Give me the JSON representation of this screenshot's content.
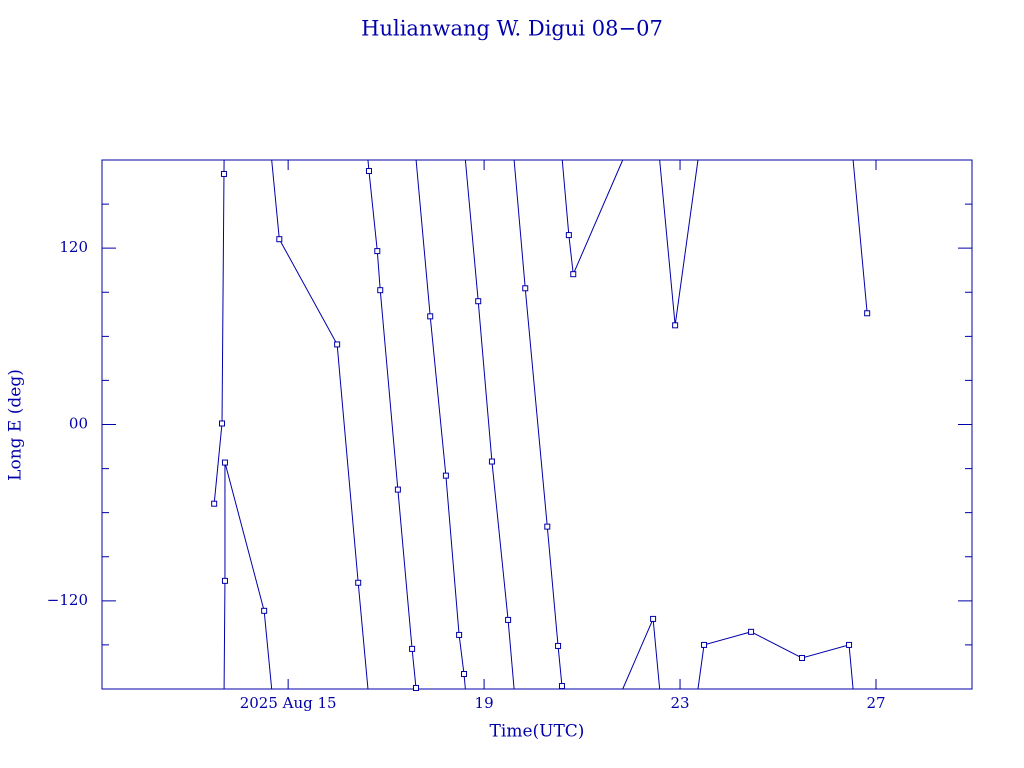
{
  "chart_data": {
    "type": "line",
    "title": "Hulianwang W. Digui 08−07",
    "xlabel": "Time(UTC)",
    "ylabel": "Long E (deg)",
    "color": "#0000aa",
    "wrap": true,
    "markers": true,
    "xlim": [
      11.2,
      28.96
    ],
    "xticks": [
      {
        "value": 15,
        "label": "2025 Aug 15"
      },
      19,
      23,
      27
    ],
    "ylim": [
      -180,
      180
    ],
    "yticks": [
      {
        "value": -120,
        "label": "−120"
      },
      {
        "value": 0,
        "label": "00"
      },
      120
    ],
    "yminor": [
      -150,
      -90,
      -60,
      -30,
      30,
      60,
      90,
      150
    ],
    "x": [
      13.49,
      13.65,
      13.69,
      13.71,
      13.71,
      14.51,
      14.82,
      16.0,
      16.43,
      16.65,
      16.82,
      16.88,
      17.24,
      17.53,
      17.61,
      17.9,
      18.22,
      18.49,
      18.59,
      18.88,
      19.16,
      19.49,
      19.84,
      20.29,
      20.51,
      20.59,
      20.73,
      20.82,
      22.45,
      22.9,
      23.49,
      24.45,
      25.49,
      26.45,
      26.82
    ],
    "values": [
      -53.9,
      0.7,
      170.5,
      -106.4,
      -25.9,
      -126.8,
      126.1,
      54.5,
      -107.7,
      172.5,
      118.0,
      91.4,
      -44.3,
      -152.7,
      -179.3,
      73.6,
      -34.8,
      -143.2,
      -169.8,
      83.9,
      -25.2,
      -133.0,
      92.7,
      -69.5,
      -150.7,
      -178.0,
      128.9,
      102.3,
      -132.3,
      67.5,
      -150.0,
      -141.1,
      -158.9,
      -150.0,
      75.7
    ]
  }
}
